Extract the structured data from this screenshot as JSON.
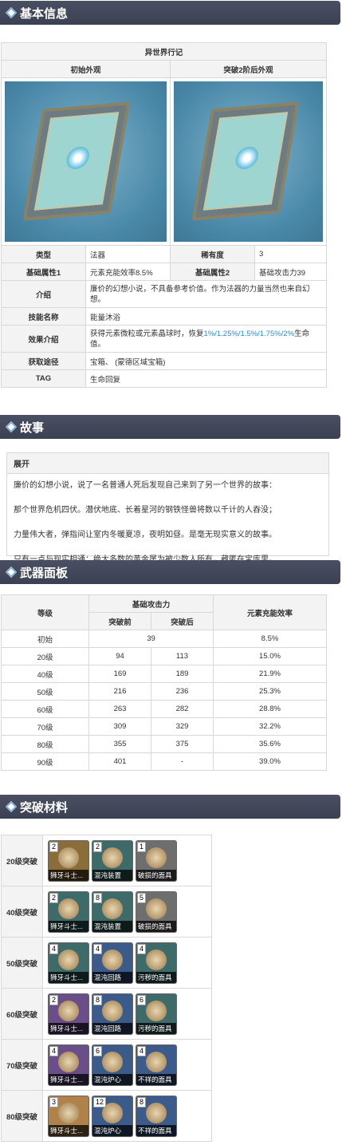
{
  "sections": {
    "basic": "基本信息",
    "story": "故事",
    "panel": "武器面板",
    "ascend": "突破材料"
  },
  "basic": {
    "name": "异世界行记",
    "initial_label": "初始外观",
    "ascended_label": "突破2阶后外观",
    "rows": [
      {
        "l1": "类型",
        "v1": "法器",
        "l2": "稀有度",
        "v2": "3"
      },
      {
        "l1": "基础属性1",
        "v1": "元素充能效率8.5%",
        "l2": "基础属性2",
        "v2": "基础攻击力39"
      }
    ],
    "intro_label": "介绍",
    "intro": "廉价的幻想小说，不具备参考价值。作为法器的力量当然也来自幻想。",
    "skill_label": "技能名称",
    "skill": "能量沐浴",
    "effect_label": "效果介绍",
    "effect_pre": "获得元素微粒或元素晶球时，恢复",
    "effect_link": "1%/1.25%/1.5%/1.75%/2%",
    "effect_post": "生命值。",
    "source_label": "获取途径",
    "source": "宝箱、 (蒙德区域宝箱)",
    "tag_label": "TAG",
    "tag": "生命回复"
  },
  "story": {
    "toggle": "展开",
    "paras": [
      "廉价的幻想小说，说了一名普通人死后发现自己来到了另一个世界的故事：",
      "那个世界危机四伏。潜伏地底、长着星河的钢铁怪兽将数以千计的人吞没；",
      "力量伟大者，弹指间让室内冬暖夏凉，夜明如昼。是毫无现实意义的故事。",
      "只有一点与现实相通：绝大多数的黄金属为被少数人所有，藏匿在宝库里。"
    ]
  },
  "panel": {
    "h_level": "等级",
    "h_atk": "基础攻击力",
    "h_before": "突破前",
    "h_after": "突破后",
    "h_er": "元素充能效率",
    "initial": {
      "level": "初始",
      "atk": "39",
      "er": "8.5%"
    },
    "rows": [
      {
        "level": "20级",
        "before": "94",
        "after": "113",
        "er": "15.0%"
      },
      {
        "level": "40级",
        "before": "169",
        "after": "189",
        "er": "21.9%"
      },
      {
        "level": "50级",
        "before": "216",
        "after": "236",
        "er": "25.3%"
      },
      {
        "level": "60级",
        "before": "263",
        "after": "282",
        "er": "28.8%"
      },
      {
        "level": "70级",
        "before": "309",
        "after": "329",
        "er": "32.2%"
      },
      {
        "level": "80级",
        "before": "355",
        "after": "375",
        "er": "35.6%"
      },
      {
        "level": "90级",
        "before": "401",
        "after": "-",
        "er": "39.0%"
      }
    ]
  },
  "ascend": {
    "rows": [
      {
        "level": "20级突破",
        "mats": [
          {
            "n": "2",
            "name": "狮牙斗士...",
            "bg": "#8a6d3b"
          },
          {
            "n": "2",
            "name": "混沌装置",
            "bg": "#3d6b6a"
          },
          {
            "n": "1",
            "name": "破损的面具",
            "bg": "#6e6e6e"
          }
        ]
      },
      {
        "level": "40级突破",
        "mats": [
          {
            "n": "2",
            "name": "狮牙斗士...",
            "bg": "#3d6b6a"
          },
          {
            "n": "8",
            "name": "混沌装置",
            "bg": "#3d6b6a"
          },
          {
            "n": "5",
            "name": "破损的面具",
            "bg": "#6e6e6e"
          }
        ]
      },
      {
        "level": "50级突破",
        "mats": [
          {
            "n": "4",
            "name": "狮牙斗士...",
            "bg": "#3d6b6a"
          },
          {
            "n": "4",
            "name": "混沌回路",
            "bg": "#3b5b8a"
          },
          {
            "n": "4",
            "name": "污秽的面具",
            "bg": "#3d6b6a"
          }
        ]
      },
      {
        "level": "60级突破",
        "mats": [
          {
            "n": "2",
            "name": "狮牙斗士...",
            "bg": "#6a4e8a"
          },
          {
            "n": "8",
            "name": "混沌回路",
            "bg": "#3b5b8a"
          },
          {
            "n": "6",
            "name": "污秽的面具",
            "bg": "#3d6b6a"
          }
        ]
      },
      {
        "level": "70级突破",
        "mats": [
          {
            "n": "4",
            "name": "狮牙斗士...",
            "bg": "#6a4e8a"
          },
          {
            "n": "6",
            "name": "混沌炉心",
            "bg": "#3b5b8a"
          },
          {
            "n": "4",
            "name": "不祥的面具",
            "bg": "#3b5b8a"
          }
        ]
      },
      {
        "level": "80级突破",
        "mats": [
          {
            "n": "3",
            "name": "狮牙斗士...",
            "bg": "#b0824a"
          },
          {
            "n": "12",
            "name": "混沌炉心",
            "bg": "#3b5b8a"
          },
          {
            "n": "8",
            "name": "不祥的面具",
            "bg": "#3b5b8a"
          }
        ]
      }
    ]
  },
  "colors": {
    "header": "#454a5c",
    "link": "#2e8ad8"
  }
}
